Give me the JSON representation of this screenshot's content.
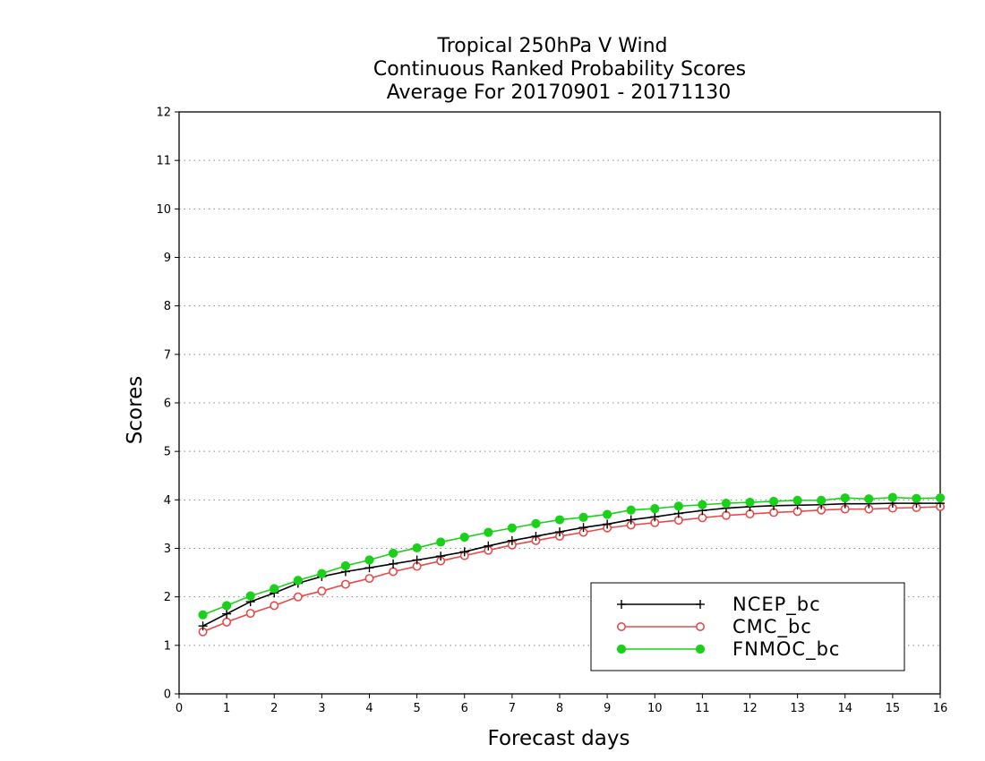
{
  "chart_data": {
    "type": "line",
    "title": [
      "Tropical 250hPa V Wind",
      "Continuous Ranked Probability Scores",
      "Average For 20170901 - 20171130"
    ],
    "xlabel": "Forecast days",
    "ylabel": "Scores",
    "xlim": [
      0,
      16
    ],
    "ylim": [
      0,
      12
    ],
    "xticks": [
      "0",
      "1",
      "2",
      "3",
      "4",
      "5",
      "6",
      "7",
      "8",
      "9",
      "10",
      "11",
      "12",
      "13",
      "14",
      "15",
      "16"
    ],
    "yticks": [
      "0",
      "1",
      "2",
      "3",
      "4",
      "5",
      "6",
      "7",
      "8",
      "9",
      "10",
      "11",
      "12"
    ],
    "grid": "horizontal dotted",
    "legend_position": "bottom-right",
    "x": [
      0.5,
      1,
      1.5,
      2,
      2.5,
      3,
      3.5,
      4,
      4.5,
      5,
      5.5,
      6,
      6.5,
      7,
      7.5,
      8,
      8.5,
      9,
      9.5,
      10,
      10.5,
      11,
      11.5,
      12,
      12.5,
      13,
      13.5,
      14,
      14.5,
      15,
      15.5,
      16
    ],
    "series": [
      {
        "name": "NCEP_bc",
        "color": "#000000",
        "marker": "plus",
        "values": [
          1.4,
          1.65,
          1.9,
          2.08,
          2.28,
          2.42,
          2.52,
          2.6,
          2.68,
          2.76,
          2.84,
          2.93,
          3.05,
          3.16,
          3.25,
          3.34,
          3.43,
          3.5,
          3.59,
          3.65,
          3.72,
          3.78,
          3.83,
          3.86,
          3.88,
          3.89,
          3.9,
          3.92,
          3.92,
          3.93,
          3.93,
          3.93
        ]
      },
      {
        "name": "CMC_bc",
        "color": "#e84a4a",
        "marker": "open-circle",
        "values": [
          1.28,
          1.48,
          1.66,
          1.82,
          2.0,
          2.12,
          2.26,
          2.38,
          2.52,
          2.63,
          2.74,
          2.85,
          2.96,
          3.07,
          3.16,
          3.25,
          3.33,
          3.42,
          3.48,
          3.53,
          3.58,
          3.63,
          3.68,
          3.71,
          3.74,
          3.76,
          3.79,
          3.81,
          3.81,
          3.83,
          3.84,
          3.86
        ]
      },
      {
        "name": "FNMOC_bc",
        "color": "#19d119",
        "marker": "filled-circle",
        "values": [
          1.63,
          1.82,
          2.02,
          2.17,
          2.34,
          2.48,
          2.64,
          2.76,
          2.9,
          3.01,
          3.13,
          3.23,
          3.33,
          3.42,
          3.51,
          3.59,
          3.64,
          3.7,
          3.79,
          3.82,
          3.87,
          3.9,
          3.93,
          3.95,
          3.97,
          3.99,
          3.99,
          4.04,
          4.02,
          4.05,
          4.03,
          4.04
        ]
      }
    ]
  }
}
